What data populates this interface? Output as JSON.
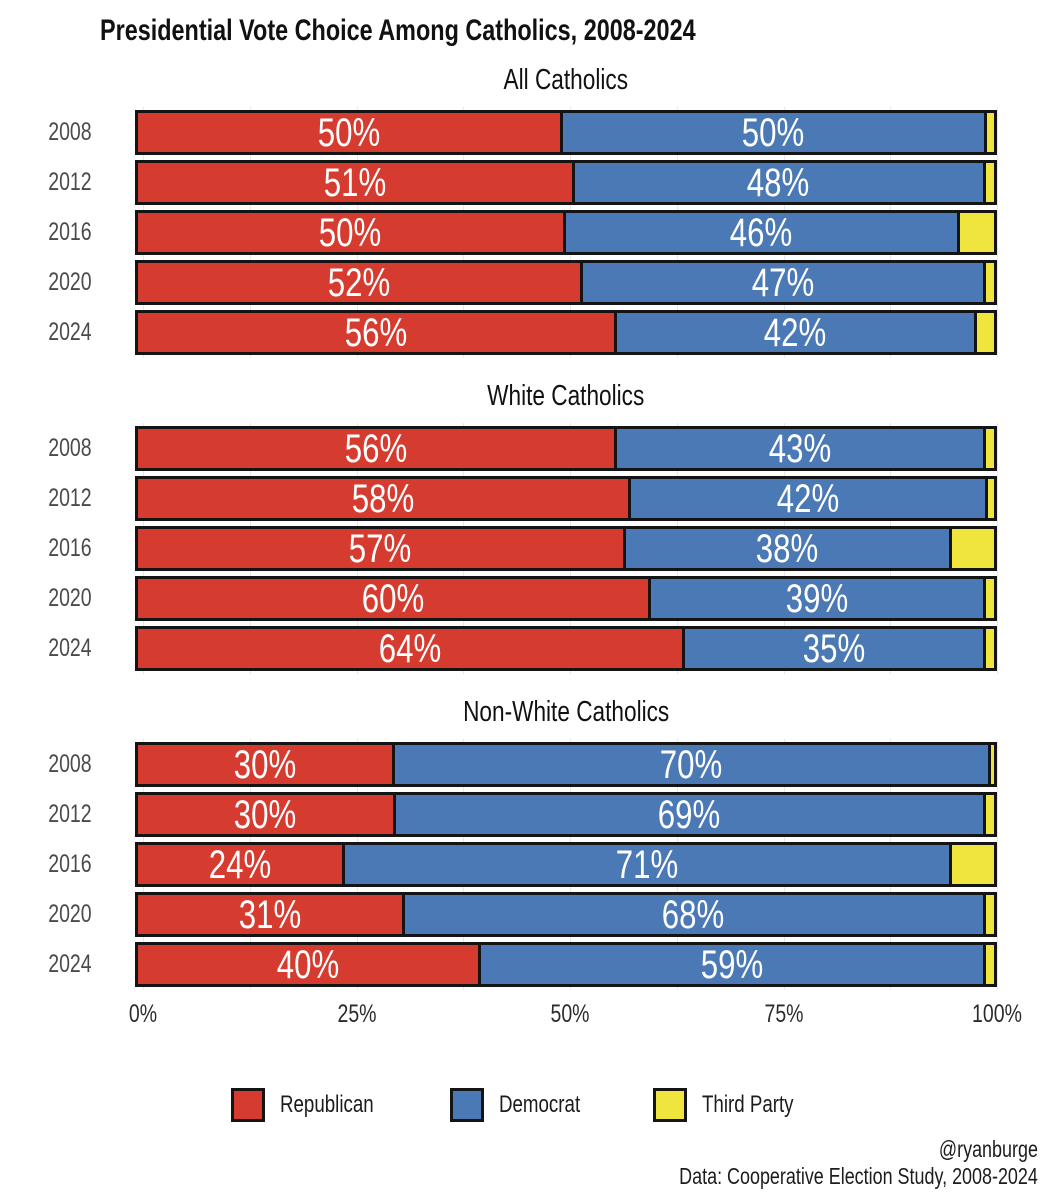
{
  "chart_data": {
    "type": "bar",
    "stacked": true,
    "orientation": "horizontal",
    "title": "Presidential Vote Choice Among Catholics, 2008-2024",
    "xlim": [
      0,
      100
    ],
    "x_ticks": [
      "0%",
      "25%",
      "50%",
      "75%",
      "100%"
    ],
    "grid": "faint vertical minor gridlines every 12.5%",
    "legend_position": "bottom",
    "label_threshold_pct": 8,
    "legend": [
      {
        "label": "Republican",
        "color": "#d63b2f"
      },
      {
        "label": "Democrat",
        "color": "#4a79b5"
      },
      {
        "label": "Third Party",
        "color": "#f0e53c"
      }
    ],
    "panels": [
      {
        "title": "All Catholics",
        "years": [
          "2008",
          "2012",
          "2016",
          "2020",
          "2024"
        ],
        "series": [
          {
            "name": "Republican",
            "values": [
              50,
              51,
              50,
              52,
              56
            ]
          },
          {
            "name": "Democrat",
            "values": [
              50,
              48,
              46,
              47,
              42
            ]
          },
          {
            "name": "Third Party",
            "values": [
              0.8,
              1,
              4,
              1,
              2
            ]
          }
        ]
      },
      {
        "title": "White Catholics",
        "years": [
          "2008",
          "2012",
          "2016",
          "2020",
          "2024"
        ],
        "series": [
          {
            "name": "Republican",
            "values": [
              56,
              58,
              57,
              60,
              64
            ]
          },
          {
            "name": "Democrat",
            "values": [
              43,
              42,
              38,
              39,
              35
            ]
          },
          {
            "name": "Third Party",
            "values": [
              1,
              0.7,
              5,
              1,
              1
            ]
          }
        ]
      },
      {
        "title": "Non-White Catholics",
        "years": [
          "2008",
          "2012",
          "2016",
          "2020",
          "2024"
        ],
        "series": [
          {
            "name": "Republican",
            "values": [
              30,
              30,
              24,
              31,
              40
            ]
          },
          {
            "name": "Democrat",
            "values": [
              70,
              69,
              71,
              68,
              59
            ]
          },
          {
            "name": "Third Party",
            "values": [
              0.4,
              1,
              5,
              1,
              1
            ]
          }
        ]
      }
    ]
  },
  "footer": {
    "handle": "@ryanburge",
    "source": "Data: Cooperative Election Study, 2008-2024"
  }
}
